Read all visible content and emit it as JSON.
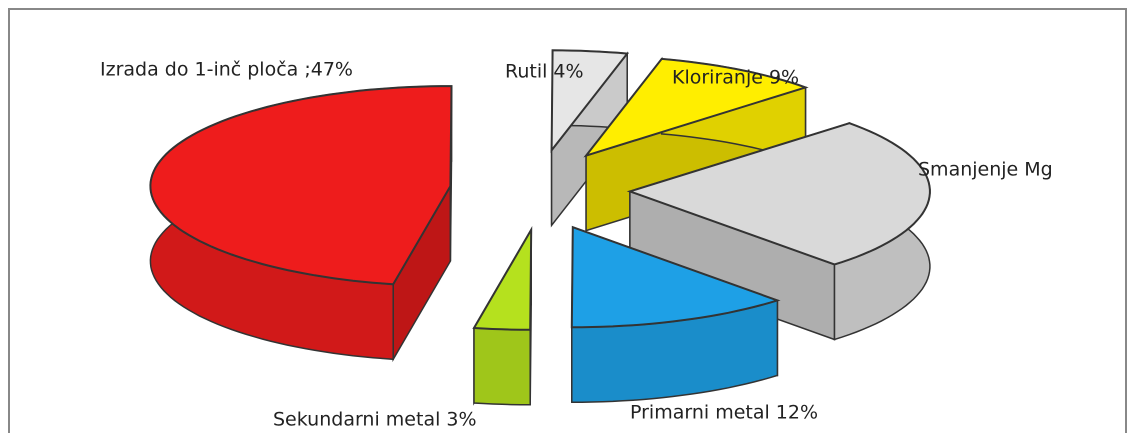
{
  "chart_data": {
    "type": "pie3d",
    "categories": [
      "Izrada do 1-inč ploča ;47%",
      "Rutil 4%",
      "Kloriranje 9%",
      "Smanjenje Mg",
      "Primarni metal 12%",
      "Sekundarni metal 3%"
    ],
    "values": [
      47,
      4,
      9,
      25,
      12,
      3
    ],
    "colors": [
      "#ee1c1c",
      "#e6e6e6",
      "#ffee00",
      "#d9d9d9",
      "#1ea0e6",
      "#b5e11e"
    ]
  }
}
